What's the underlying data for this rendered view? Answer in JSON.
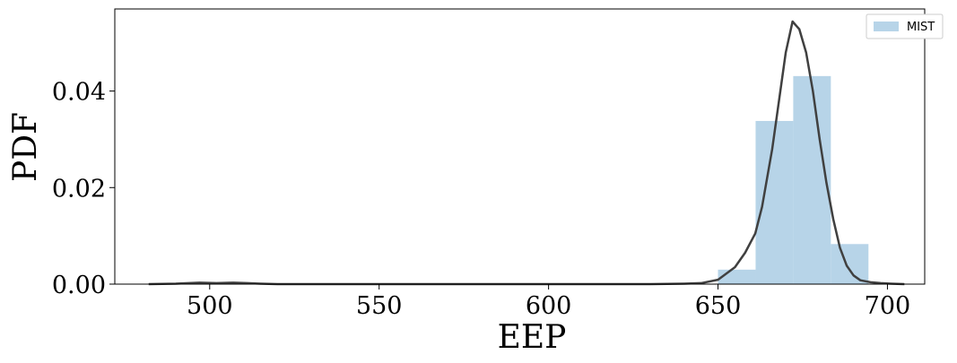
{
  "chart_data": {
    "type": "bar",
    "title": "",
    "xlabel": "EEP",
    "ylabel": "PDF",
    "xlim": [
      472,
      711
    ],
    "ylim": [
      0.0,
      0.057
    ],
    "grid": false,
    "xticks": [
      {
        "value": 500,
        "label": "500"
      },
      {
        "value": 550,
        "label": "550"
      },
      {
        "value": 600,
        "label": "600"
      },
      {
        "value": 650,
        "label": "650"
      },
      {
        "value": 700,
        "label": "700"
      }
    ],
    "yticks": [
      {
        "value": 0.0,
        "label": "0.00"
      },
      {
        "value": 0.02,
        "label": "0.02"
      },
      {
        "value": 0.04,
        "label": "0.04"
      }
    ],
    "legend": {
      "position": "top-right",
      "entries": [
        {
          "label": "MIST",
          "color": "#b7d4e8"
        }
      ]
    },
    "histogram": {
      "name": "MIST",
      "color": "#b7d4e8",
      "bins": [
        {
          "x0": 650.0,
          "x1": 661.1,
          "density": 0.003
        },
        {
          "x0": 661.1,
          "x1": 672.2,
          "density": 0.0338
        },
        {
          "x0": 672.2,
          "x1": 683.3,
          "density": 0.0431
        },
        {
          "x0": 683.3,
          "x1": 694.4,
          "density": 0.0083
        }
      ]
    },
    "kde": {
      "color": "#404040",
      "x": [
        482,
        490,
        497,
        502,
        507,
        511,
        515,
        520,
        530,
        550,
        575,
        600,
        620,
        630,
        640,
        645,
        650,
        655,
        658,
        661,
        663,
        666,
        668,
        670,
        672,
        674,
        676,
        678,
        680,
        682,
        684,
        686,
        688,
        690,
        692,
        695,
        698,
        701,
        705
      ],
      "y": [
        0.0,
        0.0001,
        0.0003,
        0.0002,
        0.0003,
        0.0002,
        0.0001,
        0.0,
        0.0,
        0.0,
        0.0,
        0.0,
        0.0,
        0.0,
        0.0001,
        0.0002,
        0.0009,
        0.0035,
        0.0065,
        0.0105,
        0.016,
        0.028,
        0.038,
        0.048,
        0.0544,
        0.0528,
        0.048,
        0.04,
        0.03,
        0.021,
        0.0135,
        0.0075,
        0.0038,
        0.0018,
        0.0008,
        0.0004,
        0.0002,
        0.0001,
        0.0
      ]
    }
  }
}
